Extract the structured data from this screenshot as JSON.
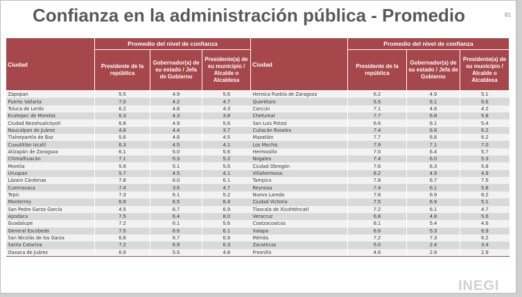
{
  "title": "Confianza en la administración pública - Promedio",
  "page_number": "81",
  "header": {
    "city": "Ciudad",
    "group": "Promedio del nivel de confianza",
    "col1": "Presidente de la república",
    "col2": "Gobernador(a) de su estado / Jefa de Gobierno",
    "col3": "Presidente(a) de su municipio / Alcalde o Alcaldesa"
  },
  "colors": {
    "header": "#a6474b",
    "stripe_light": "#f2f2f2",
    "stripe_dark": "#d9d9d9"
  },
  "left_rows": [
    [
      "Zapopan",
      "5.5",
      "4.9",
      "5.6"
    ],
    [
      "Puerto Vallarta",
      "7.0",
      "4.2",
      "4.7"
    ],
    [
      "Toluca de Lerdo",
      "6.2",
      "4.8",
      "4.3"
    ],
    [
      "Ecatepec de Morelos",
      "6.3",
      "4.3",
      "3.8"
    ],
    [
      "Ciudad Nezahualcóyotl",
      "6.8",
      "4.9",
      "5.6"
    ],
    [
      "Naucalpan de Juárez",
      "4.8",
      "4.4",
      "3.7"
    ],
    [
      "Tlalnepantla de Baz",
      "5.6",
      "4.8",
      "4.5"
    ],
    [
      "Cuautitlán Izcalli",
      "6.3",
      "4.5",
      "4.1"
    ],
    [
      "Atizapán de Zaragoza",
      "6.1",
      "5.0",
      "5.6"
    ],
    [
      "Chimalhuacán",
      "7.1",
      "5.3",
      "5.2"
    ],
    [
      "Morelia",
      "5.9",
      "5.1",
      "5.5"
    ],
    [
      "Uruapan",
      "5.7",
      "4.5",
      "4.1"
    ],
    [
      "Lázaro Cárdenas",
      "7.8",
      "6.0",
      "6.1"
    ],
    [
      "Cuernavaca",
      "7.4",
      "3.6",
      "4.7"
    ],
    [
      "Tepic",
      "7.3",
      "6.1",
      "5.2"
    ],
    [
      "Monterrey",
      "6.9",
      "6.5",
      "6.4"
    ],
    [
      "San Pedro Garza García",
      "4.5",
      "6.7",
      "6.9"
    ],
    [
      "Apodaca",
      "7.5",
      "6.4",
      "8.0"
    ],
    [
      "Guadalupe",
      "7.2",
      "6.1",
      "5.6"
    ],
    [
      "General Escobedo",
      "7.5",
      "6.6",
      "6.1"
    ],
    [
      "San Nicolás de los Garza",
      "6.8",
      "6.7",
      "6.9"
    ],
    [
      "Santa Catarina",
      "7.2",
      "6.9",
      "6.3"
    ],
    [
      "Oaxaca de Juárez",
      "6.9",
      "5.5",
      "4.8"
    ]
  ],
  "right_rows": [
    [
      "Heroica Puebla de Zaragoza",
      "6.2",
      "4.9",
      "5.1"
    ],
    [
      "Querétaro",
      "5.5",
      "6.1",
      "5.6"
    ],
    [
      "Cancún",
      "7.1",
      "4.8",
      "4.2"
    ],
    [
      "Chetumal",
      "7.7",
      "6.8",
      "5.8"
    ],
    [
      "San Luis Potosí",
      "6.6",
      "6.1",
      "5.4"
    ],
    [
      "Culiacán Rosales",
      "7.4",
      "6.8",
      "6.2"
    ],
    [
      "Mazatlán",
      "7.7",
      "6.8",
      "6.2"
    ],
    [
      "Los Mochis",
      "7.9",
      "7.1",
      "7.0"
    ],
    [
      "Hermosillo",
      "7.0",
      "6.4",
      "5.7"
    ],
    [
      "Nogales",
      "7.4",
      "6.0",
      "5.3"
    ],
    [
      "Ciudad Obregón",
      "7.6",
      "6.3",
      "5.8"
    ],
    [
      "Villahermosa",
      "8.2",
      "4.9",
      "4.9"
    ],
    [
      "Tampico",
      "7.8",
      "6.7",
      "7.5"
    ],
    [
      "Reynosa",
      "7.4",
      "6.1",
      "5.8"
    ],
    [
      "Nuevo Laredo",
      "7.8",
      "6.9",
      "8.2"
    ],
    [
      "Ciudad Victoria",
      "7.5",
      "6.9",
      "5.1"
    ],
    [
      "Tlaxcala de Xicohténcatl",
      "7.2",
      "6.1",
      "4.7"
    ],
    [
      "Veracruz",
      "6.8",
      "4.8",
      "5.6"
    ],
    [
      "Coatzacoalcos",
      "8.1",
      "5.4",
      "4.6"
    ],
    [
      "Xalapa",
      "6.6",
      "5.3",
      "6.9"
    ],
    [
      "Mérida",
      "7.2",
      "7.3",
      "6.2"
    ],
    [
      "Zacatecas",
      "5.0",
      "2.4",
      "3.4"
    ],
    [
      "Fresnillo",
      "4.6",
      "2.9",
      "2.9"
    ]
  ],
  "watermark": "INEGI"
}
